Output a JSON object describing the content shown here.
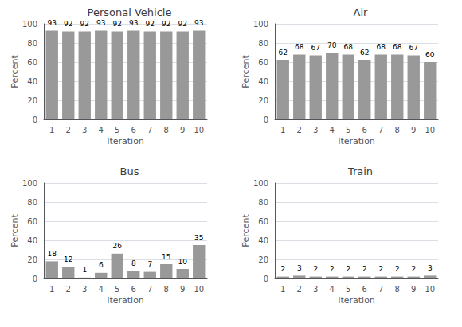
{
  "chart_data": [
    {
      "type": "bar",
      "title": "Personal Vehicle",
      "xlabel": "Iteration",
      "ylabel": "Percent",
      "categories": [
        1,
        2,
        3,
        4,
        5,
        6,
        7,
        8,
        9,
        10
      ],
      "values": [
        93,
        92,
        92,
        93,
        92,
        93,
        92,
        92,
        92,
        93
      ],
      "color": "#999999",
      "ylim": [
        0,
        100
      ],
      "yticks": [
        0,
        20,
        40,
        60,
        80,
        100
      ],
      "grid": true,
      "data_labels": true
    },
    {
      "type": "bar",
      "title": "Air",
      "xlabel": "Iteration",
      "ylabel": "Percent",
      "categories": [
        1,
        2,
        3,
        4,
        5,
        6,
        7,
        8,
        9,
        10
      ],
      "values": [
        62,
        68,
        67,
        70,
        68,
        62,
        68,
        68,
        67,
        60
      ],
      "color": "#999999",
      "ylim": [
        0,
        100
      ],
      "yticks": [
        0,
        20,
        40,
        60,
        80,
        100
      ],
      "grid": true,
      "data_labels": true
    },
    {
      "type": "bar",
      "title": "Bus",
      "xlabel": "Iteration",
      "ylabel": "Percent",
      "categories": [
        1,
        2,
        3,
        4,
        5,
        6,
        7,
        8,
        9,
        10
      ],
      "values": [
        18,
        12,
        1,
        6,
        26,
        8,
        7,
        15,
        10,
        35
      ],
      "color": "#999999",
      "ylim": [
        0,
        100
      ],
      "yticks": [
        0,
        20,
        40,
        60,
        80,
        100
      ],
      "grid": true,
      "data_labels": true
    },
    {
      "type": "bar",
      "title": "Train",
      "xlabel": "Iteration",
      "ylabel": "Percent",
      "categories": [
        1,
        2,
        3,
        4,
        5,
        6,
        7,
        8,
        9,
        10
      ],
      "values": [
        2,
        3,
        2,
        2,
        2,
        2,
        2,
        2,
        2,
        3
      ],
      "color": "#999999",
      "ylim": [
        0,
        100
      ],
      "yticks": [
        0,
        20,
        40,
        60,
        80,
        100
      ],
      "grid": true,
      "data_labels": true
    }
  ]
}
